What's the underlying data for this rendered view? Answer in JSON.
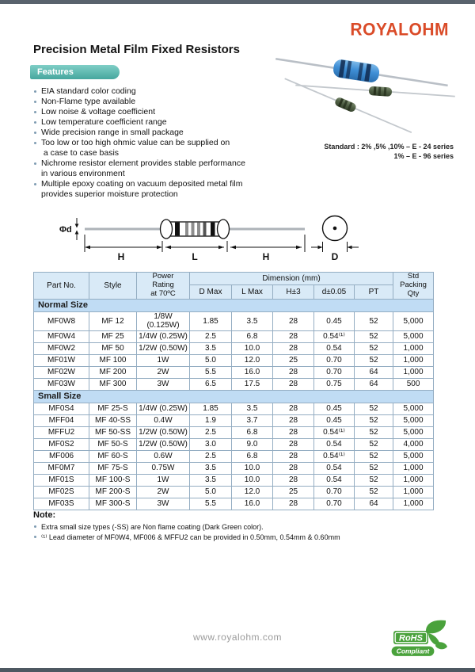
{
  "header": {
    "logo": "ROYALOHM",
    "title": "Precision Metal Film Fixed Resistors"
  },
  "features": {
    "badge": "Features",
    "items": [
      "EIA standard color coding",
      "Non-Flame type available",
      "Low noise & voltage coefficient",
      "Low temperature coefficient range",
      "Wide precision range in small package",
      "Too low or too high ohmic value can be supplied on\n a case to case basis",
      "Nichrome resistor element  provides stable performance\nin various environment",
      "Multiple epoxy coating on vacuum deposited metal film\nprovides superior moisture protection"
    ]
  },
  "standard": {
    "line1": "Standard : 2%  ,5%  ,10% – E - 24 series",
    "line2": "1% – E - 96 series"
  },
  "diagram": {
    "phi_d": "Φd",
    "h_left": "H",
    "length": "L",
    "h_right": "H",
    "diameter": "D"
  },
  "table": {
    "col_headers": {
      "part_no": "Part No.",
      "style": "Style",
      "power": "Power\nRating\nat 70ºC",
      "dimension_group": "Dimension (mm)",
      "d_max": "D Max",
      "l_max": "L Max",
      "h": "H±3",
      "d": "d±0.05",
      "pt": "PT",
      "qty": "Std\nPacking\nQty"
    },
    "sections": [
      {
        "name": "Normal Size",
        "rows": [
          [
            "MF0W8",
            "MF 12",
            "1/8W (0.125W)",
            "1.85",
            "3.5",
            "28",
            "0.45",
            "52",
            "5,000"
          ],
          [
            "MF0W4",
            "MF 25",
            "1/4W (0.25W)",
            "2.5",
            "6.8",
            "28",
            "0.54⁽¹⁾",
            "52",
            "5,000"
          ],
          [
            "MF0W2",
            "MF 50",
            "1/2W (0.50W)",
            "3.5",
            "10.0",
            "28",
            "0.54",
            "52",
            "1,000"
          ],
          [
            "MF01W",
            "MF 100",
            "1W",
            "5.0",
            "12.0",
            "25",
            "0.70",
            "52",
            "1,000"
          ],
          [
            "MF02W",
            "MF 200",
            "2W",
            "5.5",
            "16.0",
            "28",
            "0.70",
            "64",
            "1,000"
          ],
          [
            "MF03W",
            "MF 300",
            "3W",
            "6.5",
            "17.5",
            "28",
            "0.75",
            "64",
            "500"
          ]
        ]
      },
      {
        "name": "Small Size",
        "rows": [
          [
            "MF0S4",
            "MF 25-S",
            "1/4W (0.25W)",
            "1.85",
            "3.5",
            "28",
            "0.45",
            "52",
            "5,000"
          ],
          [
            "MFF04",
            "MF 40-SS",
            "0.4W",
            "1.9",
            "3.7",
            "28",
            "0.45",
            "52",
            "5,000"
          ],
          [
            "MFFU2",
            "MF 50-SS",
            "1/2W (0.50W)",
            "2.5",
            "6.8",
            "28",
            "0.54⁽¹⁾",
            "52",
            "5,000"
          ],
          [
            "MF0S2",
            "MF 50-S",
            "1/2W (0.50W)",
            "3.0",
            "9.0",
            "28",
            "0.54",
            "52",
            "4,000"
          ],
          [
            "MF006",
            "MF 60-S",
            "0.6W",
            "2.5",
            "6.8",
            "28",
            "0.54⁽¹⁾",
            "52",
            "5,000"
          ],
          [
            "MF0M7",
            "MF 75-S",
            "0.75W",
            "3.5",
            "10.0",
            "28",
            "0.54",
            "52",
            "1,000"
          ],
          [
            "MF01S",
            "MF 100-S",
            "1W",
            "3.5",
            "10.0",
            "28",
            "0.54",
            "52",
            "1,000"
          ],
          [
            "MF02S",
            "MF 200-S",
            "2W",
            "5.0",
            "12.0",
            "25",
            "0.70",
            "52",
            "1,000"
          ],
          [
            "MF03S",
            "MF 300-S",
            "3W",
            "5.5",
            "16.0",
            "28",
            "0.70",
            "64",
            "1,000"
          ]
        ]
      }
    ]
  },
  "note": {
    "title": "Note:",
    "items": [
      "Extra small size types (-SS) are  Non flame coating (Dark Green color).",
      "⁽¹⁾ Lead diameter of MF0W4, MF006 & MFFU2 can be provided in 0.50mm, 0.54mm & 0.60mm"
    ]
  },
  "footer": {
    "website": "www.royalohm.com",
    "rohs_line1": "RoHS",
    "rohs_line2": "Compliant"
  },
  "colors": {
    "accent_red": "#da4b28",
    "features_teal": "#55b5ac",
    "table_header_blue": "#d9eaf7",
    "section_band_blue": "#c0dcf4",
    "bar_dark": "#4e5861",
    "rohs_green": "#4aa23c"
  }
}
